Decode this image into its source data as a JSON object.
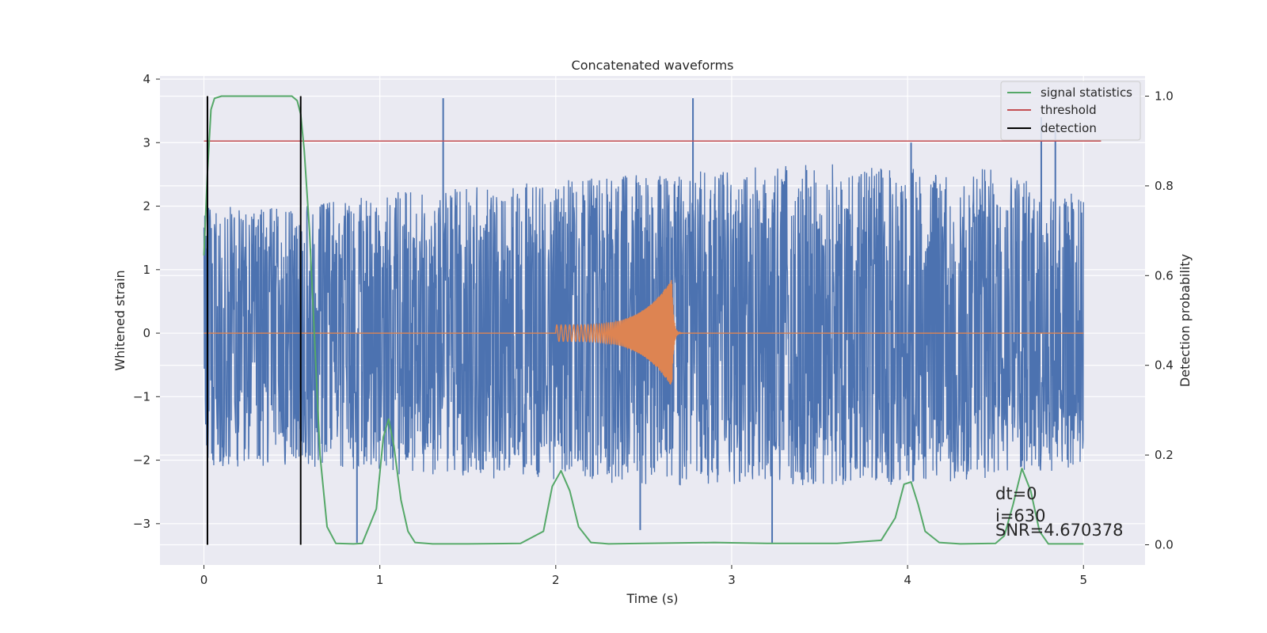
{
  "chart_data": {
    "type": "line",
    "title": "Concatenated waveforms",
    "xlabel": "Time (s)",
    "ylabel_left": "Whitened strain",
    "ylabel_right": "Detection probability",
    "xlim": [
      -0.25,
      5.35
    ],
    "ylim_left": [
      -3.65,
      4.05
    ],
    "ylim_right": [
      -0.045,
      1.045
    ],
    "x_ticks": [
      0,
      1,
      2,
      3,
      4,
      5
    ],
    "y_ticks_left": [
      -3,
      -2,
      -1,
      0,
      1,
      2,
      3,
      4
    ],
    "y_ticks_right": [
      0.0,
      0.2,
      0.4,
      0.6,
      0.8,
      1.0
    ],
    "grid": true,
    "legend_position": "top-right",
    "series": [
      {
        "name": "",
        "axis": "left",
        "color": "#4c72b0",
        "kind": "noise",
        "x_range": [
          0,
          5
        ],
        "envelope_x": [
          0,
          0.5,
          1,
          1.5,
          2,
          2.5,
          3,
          3.5,
          4,
          4.5,
          5
        ],
        "envelope_max": [
          2.0,
          2.0,
          2.2,
          2.3,
          2.4,
          2.5,
          2.6,
          2.7,
          2.6,
          2.6,
          2.2
        ],
        "envelope_min": [
          -2.1,
          -2.1,
          -2.2,
          -2.3,
          -2.3,
          -2.4,
          -2.4,
          -2.4,
          -2.4,
          -2.3,
          -2.1
        ],
        "spikes": [
          [
            0.87,
            -3.3
          ],
          [
            1.36,
            3.7
          ],
          [
            2.48,
            -3.1
          ],
          [
            2.78,
            3.7
          ],
          [
            3.23,
            -3.3
          ],
          [
            4.02,
            3.0
          ],
          [
            4.76,
            3.4
          ],
          [
            4.84,
            3.2
          ]
        ]
      },
      {
        "name": "",
        "axis": "left",
        "color": "#dd8452",
        "kind": "chirp",
        "x": [
          0,
          5
        ],
        "y": [
          0,
          0
        ],
        "chirp_start": 2.0,
        "chirp_end": 2.66,
        "amplitude_start": 0.13,
        "amplitude_end": 0.85,
        "ringdown_end": 2.74
      },
      {
        "name": "signal statistics",
        "axis": "right",
        "color": "#55a868",
        "x": [
          0,
          0.02,
          0.04,
          0.06,
          0.1,
          0.15,
          0.2,
          0.3,
          0.4,
          0.5,
          0.53,
          0.55,
          0.57,
          0.6,
          0.63,
          0.66,
          0.7,
          0.75,
          0.85,
          0.9,
          0.98,
          1.02,
          1.05,
          1.08,
          1.12,
          1.16,
          1.2,
          1.3,
          1.5,
          1.8,
          1.93,
          1.98,
          2.03,
          2.08,
          2.13,
          2.2,
          2.3,
          2.5,
          2.9,
          3.2,
          3.6,
          3.85,
          3.93,
          3.98,
          4.02,
          4.06,
          4.1,
          4.18,
          4.3,
          4.5,
          4.55,
          4.6,
          4.65,
          4.7,
          4.75,
          4.8,
          5.0
        ],
        "y": [
          0.645,
          0.83,
          0.97,
          0.995,
          1.0,
          1.0,
          1.0,
          1.0,
          1.0,
          1.0,
          0.99,
          0.96,
          0.88,
          0.7,
          0.45,
          0.2,
          0.04,
          0.003,
          0.002,
          0.003,
          0.08,
          0.24,
          0.28,
          0.22,
          0.1,
          0.03,
          0.005,
          0.002,
          0.002,
          0.003,
          0.03,
          0.13,
          0.165,
          0.12,
          0.04,
          0.005,
          0.002,
          0.003,
          0.005,
          0.003,
          0.003,
          0.01,
          0.06,
          0.135,
          0.14,
          0.09,
          0.03,
          0.005,
          0.002,
          0.003,
          0.02,
          0.09,
          0.17,
          0.12,
          0.03,
          0.002,
          0.002
        ]
      },
      {
        "name": "threshold",
        "axis": "right",
        "color": "#c44e52",
        "x": [
          0,
          5.1
        ],
        "y": [
          0.9,
          0.9
        ]
      }
    ],
    "detections": {
      "name": "detection",
      "color": "#000000",
      "x": [
        0.02,
        0.55
      ],
      "y_range": [
        0.0,
        1.0
      ]
    },
    "annotations": [
      "dt=0",
      "i=630",
      "SNR=4.670378"
    ]
  }
}
